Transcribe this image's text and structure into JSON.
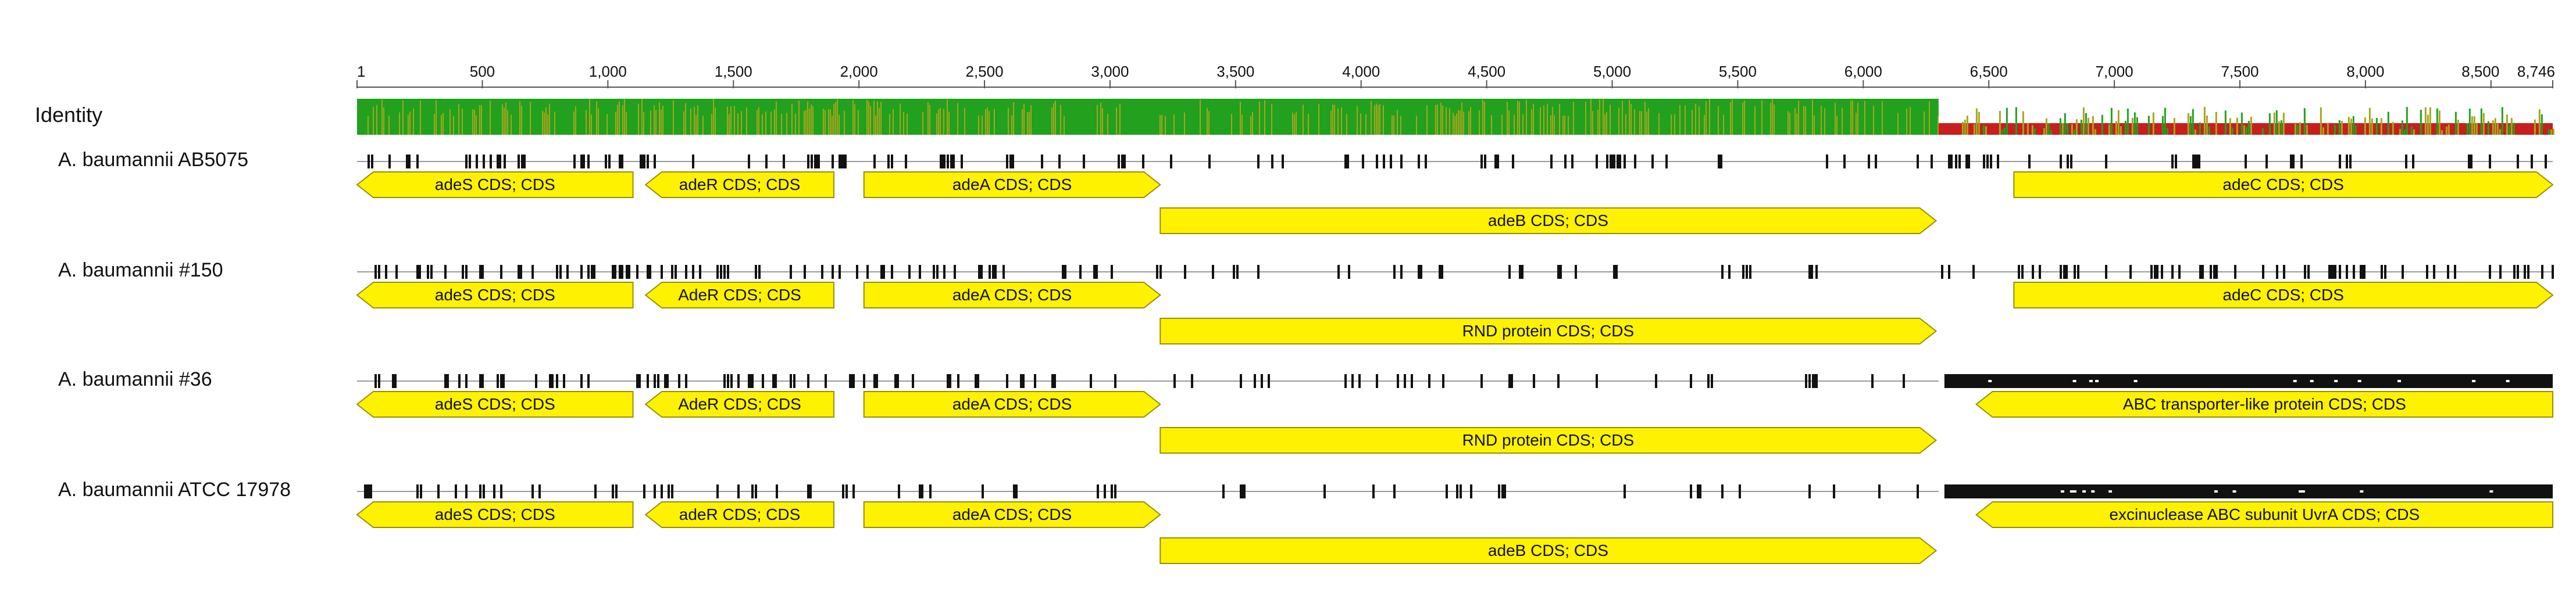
{
  "ruler": {
    "start": 1,
    "end": 8746,
    "ticks": [
      {
        "pos": 1,
        "label": "1"
      },
      {
        "pos": 500,
        "label": "500"
      },
      {
        "pos": 1000,
        "label": "1,000"
      },
      {
        "pos": 1500,
        "label": "1,500"
      },
      {
        "pos": 2000,
        "label": "2,000"
      },
      {
        "pos": 2500,
        "label": "2,500"
      },
      {
        "pos": 3000,
        "label": "3,000"
      },
      {
        "pos": 3500,
        "label": "3,500"
      },
      {
        "pos": 4000,
        "label": "4,000"
      },
      {
        "pos": 4500,
        "label": "4,500"
      },
      {
        "pos": 5000,
        "label": "5,000"
      },
      {
        "pos": 5500,
        "label": "5,500"
      },
      {
        "pos": 6000,
        "label": "6,000"
      },
      {
        "pos": 6500,
        "label": "6,500"
      },
      {
        "pos": 7000,
        "label": "7,000"
      },
      {
        "pos": 7500,
        "label": "7,500"
      },
      {
        "pos": 8000,
        "label": "8,000"
      },
      {
        "pos": 8500,
        "label": "8,500"
      },
      {
        "pos": 8746,
        "label": "8,746"
      }
    ]
  },
  "identity": {
    "label": "Identity",
    "colors": {
      "high": "#21a11e",
      "mid": "#a6a61c",
      "low": "#c81e1e"
    }
  },
  "colors": {
    "feature_fill": "#fff200",
    "feature_stroke": "#9a8d00",
    "variant_mark": "#111111",
    "consensus_line": "#9a9a9a"
  },
  "sequences": [
    {
      "name": "A. baumannii AB5075",
      "gap_start": 6300,
      "features": [
        {
          "label": "adeS CDS; CDS",
          "start": 1,
          "end": 1100,
          "strand": "-",
          "row": 0
        },
        {
          "label": "adeR CDS; CDS",
          "start": 1150,
          "end": 1900,
          "strand": "-",
          "row": 0
        },
        {
          "label": "adeA CDS; CDS",
          "start": 2020,
          "end": 3200,
          "strand": "+",
          "row": 0
        },
        {
          "label": "adeB CDS; CDS",
          "start": 3200,
          "end": 6290,
          "strand": "+",
          "row": 1
        },
        {
          "label": "adeC CDS; CDS",
          "start": 6600,
          "end": 8746,
          "strand": "+",
          "row": 0
        }
      ]
    },
    {
      "name": "A. baumannii #150",
      "gap_start": 6300,
      "features": [
        {
          "label": "adeS CDS; CDS",
          "start": 1,
          "end": 1100,
          "strand": "-",
          "row": 0
        },
        {
          "label": "AdeR CDS; CDS",
          "start": 1150,
          "end": 1900,
          "strand": "-",
          "row": 0
        },
        {
          "label": "adeA CDS; CDS",
          "start": 2020,
          "end": 3200,
          "strand": "+",
          "row": 0
        },
        {
          "label": "RND protein CDS; CDS",
          "start": 3200,
          "end": 6290,
          "strand": "+",
          "row": 1
        },
        {
          "label": "adeC CDS; CDS",
          "start": 6600,
          "end": 8746,
          "strand": "+",
          "row": 0
        }
      ]
    },
    {
      "name": "A. baumannii #36",
      "gap_start": 6300,
      "features": [
        {
          "label": "adeS CDS; CDS",
          "start": 1,
          "end": 1100,
          "strand": "-",
          "row": 0
        },
        {
          "label": "AdeR CDS; CDS",
          "start": 1150,
          "end": 1900,
          "strand": "-",
          "row": 0
        },
        {
          "label": "adeA CDS; CDS",
          "start": 2020,
          "end": 3200,
          "strand": "+",
          "row": 0
        },
        {
          "label": "RND protein CDS; CDS",
          "start": 3200,
          "end": 6290,
          "strand": "+",
          "row": 1
        },
        {
          "label": "ABC transporter-like protein CDS; CDS",
          "start": 6450,
          "end": 8746,
          "strand": "-",
          "row": 0
        }
      ]
    },
    {
      "name": "A. baumannii ATCC 17978",
      "gap_start": 6300,
      "features": [
        {
          "label": "adeS CDS; CDS",
          "start": 1,
          "end": 1100,
          "strand": "-",
          "row": 0
        },
        {
          "label": "adeR CDS; CDS",
          "start": 1150,
          "end": 1900,
          "strand": "-",
          "row": 0
        },
        {
          "label": "adeA CDS; CDS",
          "start": 2020,
          "end": 3200,
          "strand": "+",
          "row": 0
        },
        {
          "label": "adeB CDS; CDS",
          "start": 3200,
          "end": 6290,
          "strand": "+",
          "row": 1
        },
        {
          "label": "excinuclease ABC subunit UvrA CDS; CDS",
          "start": 6450,
          "end": 8746,
          "strand": "-",
          "row": 0
        }
      ]
    }
  ]
}
